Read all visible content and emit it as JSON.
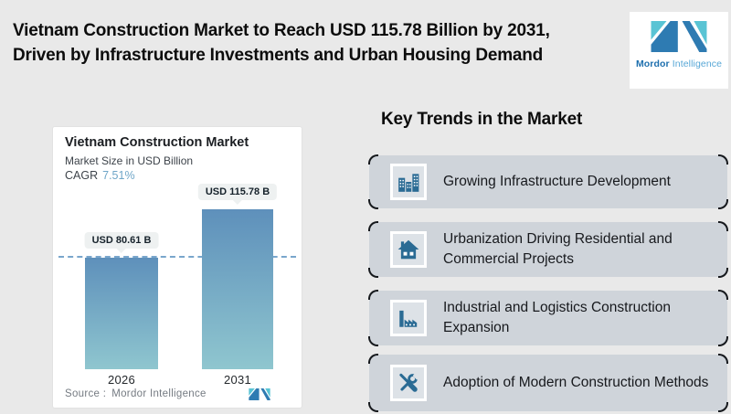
{
  "page": {
    "background": "#e9e9e9"
  },
  "header": {
    "title_line1": "Vietnam Construction Market to Reach USD 115.78 Billion by 2031,",
    "title_line2": "Driven by Infrastructure Investments and Urban Housing Demand"
  },
  "logo": {
    "mordor": "Mordor",
    "intelligence": "Intelligence",
    "blue": "#2e7bb2",
    "teal": "#59c4d4"
  },
  "chart_card": {
    "title": "Vietnam Construction Market",
    "subtitle": "Market Size in USD Billion",
    "cagr_label": "CAGR",
    "cagr_value": "7.51%",
    "source_label": "Source :",
    "source_value": "Mordor Intelligence"
  },
  "chart_data": {
    "type": "bar",
    "categories": [
      "2026",
      "2031"
    ],
    "values": [
      80.61,
      115.78
    ],
    "value_labels": [
      "USD 80.61 B",
      "USD 115.78 B"
    ],
    "title": "Vietnam Construction Market",
    "subtitle": "Market Size in USD Billion",
    "cagr_percent": 7.51,
    "ylabel": "Market Size in USD Billion",
    "ylim": [
      0,
      175
    ],
    "grid": false,
    "legend": "none",
    "dashed_reference_value": 80.61,
    "bar_gradient_top": "#5e90bb",
    "bar_gradient_bottom": "#8fc6cf",
    "dashed_line_color": "#79a6cc"
  },
  "trends": {
    "heading": "Key Trends in the Market",
    "icon_color": "#2a6b94",
    "card_background": "#cfd4da",
    "items": [
      {
        "icon": "buildings-icon",
        "label": "Growing Infrastructure Development"
      },
      {
        "icon": "house-icon",
        "label": "Urbanization Driving Residential and Commercial Projects"
      },
      {
        "icon": "factory-icon",
        "label": "Industrial and Logistics Construction Expansion"
      },
      {
        "icon": "tools-icon",
        "label": "Adoption of Modern Construction Methods"
      }
    ]
  }
}
